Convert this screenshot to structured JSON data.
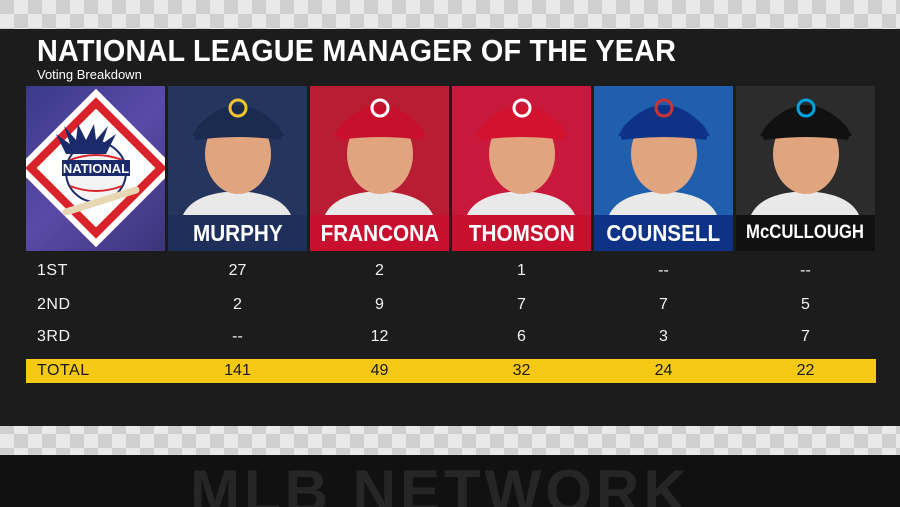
{
  "title": "NATIONAL LEAGUE MANAGER OF THE YEAR",
  "subtitle": "Voting Breakdown",
  "logo_text": "NATIONAL",
  "managers": [
    {
      "name": "MURPHY",
      "team_icon": "brewers-logo-icon",
      "bg": "#24355e",
      "plate": "#1f2f5c",
      "cap": "#1b2a4f",
      "logo": "#f4c430"
    },
    {
      "name": "FRANCONA",
      "team_icon": "reds-logo-icon",
      "bg": "#b81d33",
      "plate": "#c8102e",
      "cap": "#c8102e",
      "logo": "#ffffff"
    },
    {
      "name": "THOMSON",
      "team_icon": "phillies-logo-icon",
      "bg": "#c8183b",
      "plate": "#c8102e",
      "cap": "#d2122e",
      "logo": "#ffffff"
    },
    {
      "name": "COUNSELL",
      "team_icon": "cubs-logo-icon",
      "bg": "#1f5fae",
      "plate": "#0e3386",
      "cap": "#0e3386",
      "logo": "#cc3433"
    },
    {
      "name": "McCULLOUGH",
      "team_icon": "marlins-logo-icon",
      "bg": "#2c2c2c",
      "plate": "#111111",
      "cap": "#111111",
      "logo": "#00a3e0"
    }
  ],
  "rows": [
    {
      "label": "1ST",
      "values": [
        "27",
        "2",
        "1",
        "--",
        "--"
      ]
    },
    {
      "label": "2ND",
      "values": [
        "2",
        "9",
        "7",
        "7",
        "5"
      ]
    },
    {
      "label": "3RD",
      "values": [
        "--",
        "12",
        "6",
        "3",
        "7"
      ]
    }
  ],
  "total": {
    "label": "TOTAL",
    "values": [
      "141",
      "49",
      "32",
      "24",
      "22"
    ]
  },
  "watermark": "MLB NETWORK",
  "colors": {
    "total_bar": "#f5c916",
    "panel": "#1c1c1c"
  }
}
